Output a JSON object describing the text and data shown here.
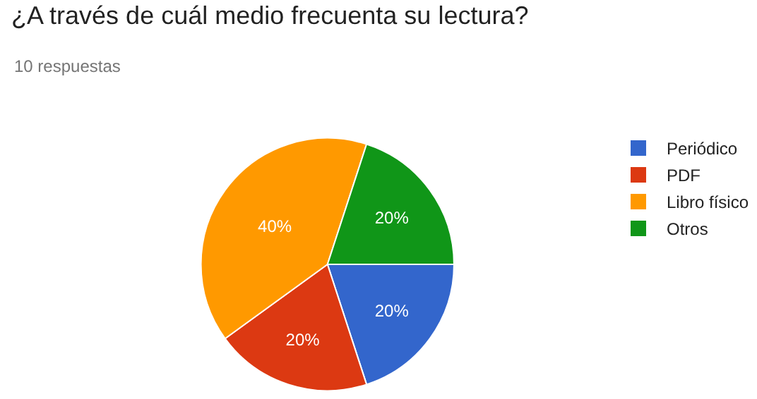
{
  "chart_data": {
    "type": "pie",
    "title": "¿A través de cuál medio frecuenta su lectura?",
    "subtitle": "10 respuestas",
    "categories": [
      "Periódico",
      "PDF",
      "Libro físico",
      "Otros"
    ],
    "values": [
      20,
      20,
      40,
      20
    ],
    "value_labels": [
      "20%",
      "20%",
      "40%",
      "20%"
    ],
    "colors": [
      "#3366cc",
      "#dc3912",
      "#ff9900",
      "#109618"
    ],
    "legend": "right"
  }
}
